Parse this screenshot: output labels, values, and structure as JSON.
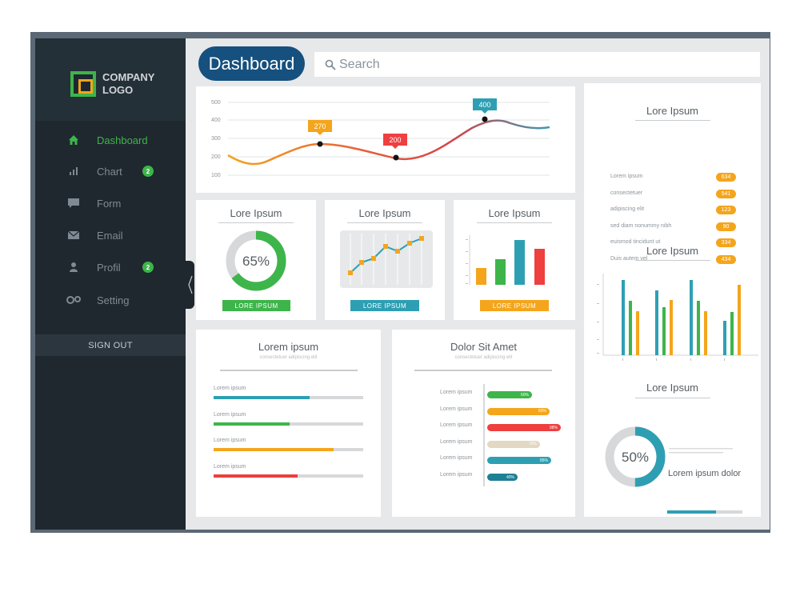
{
  "brand": {
    "line1": "COMPANY",
    "line2": "LOGO"
  },
  "sidebar": {
    "items": [
      {
        "label": "Dashboard",
        "icon": "home-icon",
        "active": true
      },
      {
        "label": "Chart",
        "icon": "bar-chart-icon",
        "badge": "2"
      },
      {
        "label": "Form",
        "icon": "chat-icon"
      },
      {
        "label": "Email",
        "icon": "envelope-icon"
      },
      {
        "label": "Profil",
        "icon": "user-icon",
        "badge": "2"
      },
      {
        "label": "Setting",
        "icon": "gear-icon"
      }
    ],
    "signout": "SIGN OUT"
  },
  "header": {
    "title": "Dashboard",
    "search_placeholder": "Search"
  },
  "line_chart": {
    "y_ticks": [
      "500",
      "400",
      "300",
      "200",
      "100"
    ],
    "callouts": [
      "270",
      "200",
      "400"
    ]
  },
  "donut_card": {
    "title": "Lore Ipsum",
    "value": "65%",
    "button": "LORE IPSUM",
    "percent": 65
  },
  "spark_card": {
    "title": "Lore Ipsum",
    "button": "LORE IPSUM"
  },
  "bars_card": {
    "title": "Lore Ipsum",
    "button": "LORE IPSUM"
  },
  "progress_card": {
    "title": "Lorem ipsum",
    "subtitle": "consectetuer adipiscing elit",
    "items": [
      {
        "label": "Lorem ipsum",
        "fill": 0.64
      },
      {
        "label": "Lorem ipsum",
        "fill": 0.51
      },
      {
        "label": "Lorem ipsum",
        "fill": 0.8
      },
      {
        "label": "Lorem ipsum",
        "fill": 0.56
      }
    ]
  },
  "hbar_card": {
    "title": "Dolor Sit Amet",
    "subtitle": "consectetuer adipiscing elit",
    "rows": [
      {
        "label": "Lorem ipsum",
        "value": "60%",
        "fill": 0.6
      },
      {
        "label": "Lorem ipsum",
        "value": "83%",
        "fill": 0.83
      },
      {
        "label": "Lorem ipsum",
        "value": "98%",
        "fill": 0.98
      },
      {
        "label": "Lorem ipsum",
        "value": "70%",
        "fill": 0.7
      },
      {
        "label": "Lorem ipsum",
        "value": "85%",
        "fill": 0.85
      },
      {
        "label": "Lorem ipsum",
        "value": "40%",
        "fill": 0.4
      }
    ]
  },
  "right_list": {
    "title": "Lore Ipsum",
    "items": [
      {
        "label": "Lorem ipsum",
        "value": "634"
      },
      {
        "label": "consectetuer",
        "value": "541"
      },
      {
        "label": "adipiscing elit",
        "value": "123"
      },
      {
        "label": "sed diam nonummy nibh",
        "value": "90"
      },
      {
        "label": "euismod tincidunt ut",
        "value": "334"
      },
      {
        "label": "Duis autem vel",
        "value": "434"
      }
    ]
  },
  "right_bars": {
    "title": "Lore Ipsum"
  },
  "right_donut": {
    "title": "Lore Ipsum",
    "value": "50%",
    "percent": 50,
    "heading": "Lorem ipsum dolor",
    "progress": 0.65
  },
  "colors": {
    "green": "#3db54a",
    "orange": "#f4a51c",
    "teal": "#2e9fb3",
    "red": "#ef3f3f",
    "navy": "#15507e"
  }
}
